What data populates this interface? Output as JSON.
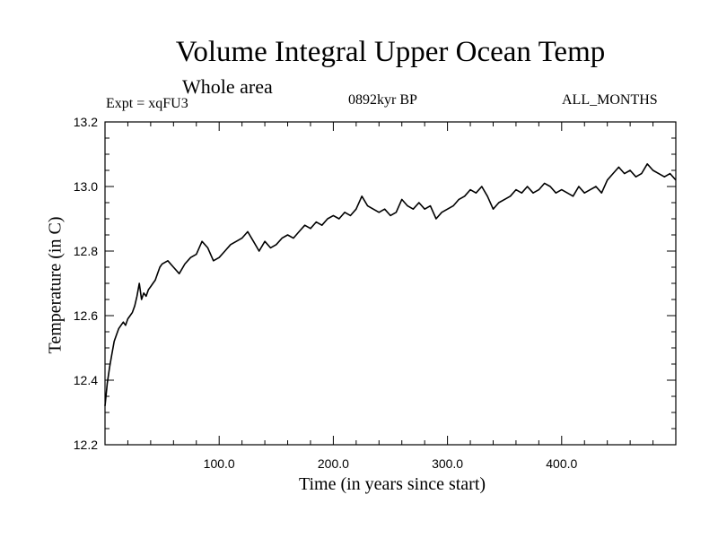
{
  "chart_data": {
    "type": "line",
    "title": "Volume Integral Upper Ocean Temp",
    "subtitle": "Whole area",
    "experiment_label": "Expt = xqFU3",
    "period_label": "0892kyr BP",
    "months_label": "ALL_MONTHS",
    "xlabel": "Time (in years since start)",
    "ylabel": "Temperature (in C)",
    "xlim": [
      0,
      500
    ],
    "ylim": [
      12.2,
      13.2
    ],
    "x_ticks": [
      100,
      200,
      300,
      400
    ],
    "x_tick_labels": [
      "100.0",
      "200.0",
      "300.0",
      "400.0"
    ],
    "y_ticks": [
      12.2,
      12.4,
      12.6,
      12.8,
      13.0,
      13.2
    ],
    "y_tick_labels": [
      "12.2",
      "12.4",
      "12.6",
      "12.8",
      "13.0",
      "13.2"
    ],
    "line_color": "#000000",
    "series": [
      {
        "name": "Volume integral upper ocean temperature",
        "x": [
          0,
          2,
          4,
          6,
          8,
          10,
          12,
          14,
          16,
          18,
          20,
          22,
          24,
          26,
          28,
          30,
          32,
          34,
          36,
          38,
          40,
          42,
          44,
          46,
          48,
          50,
          55,
          60,
          65,
          70,
          75,
          80,
          85,
          90,
          95,
          100,
          105,
          110,
          115,
          120,
          125,
          130,
          135,
          140,
          145,
          150,
          155,
          160,
          165,
          170,
          175,
          180,
          185,
          190,
          195,
          200,
          205,
          210,
          215,
          220,
          225,
          230,
          235,
          240,
          245,
          250,
          255,
          260,
          265,
          270,
          275,
          280,
          285,
          290,
          295,
          300,
          305,
          310,
          315,
          320,
          325,
          330,
          335,
          340,
          345,
          350,
          355,
          360,
          365,
          370,
          375,
          380,
          385,
          390,
          395,
          400,
          405,
          410,
          415,
          420,
          425,
          430,
          435,
          440,
          445,
          450,
          455,
          460,
          465,
          470,
          475,
          480,
          485,
          490,
          495,
          500
        ],
        "values": [
          12.32,
          12.39,
          12.44,
          12.48,
          12.52,
          12.54,
          12.56,
          12.57,
          12.58,
          12.57,
          12.59,
          12.6,
          12.61,
          12.63,
          12.66,
          12.7,
          12.65,
          12.67,
          12.66,
          12.68,
          12.69,
          12.7,
          12.71,
          12.73,
          12.75,
          12.76,
          12.77,
          12.75,
          12.73,
          12.76,
          12.78,
          12.79,
          12.83,
          12.81,
          12.77,
          12.78,
          12.8,
          12.82,
          12.83,
          12.84,
          12.86,
          12.83,
          12.8,
          12.83,
          12.81,
          12.82,
          12.84,
          12.85,
          12.84,
          12.86,
          12.88,
          12.87,
          12.89,
          12.88,
          12.9,
          12.91,
          12.9,
          12.92,
          12.91,
          12.93,
          12.97,
          12.94,
          12.93,
          12.92,
          12.93,
          12.91,
          12.92,
          12.96,
          12.94,
          12.93,
          12.95,
          12.93,
          12.94,
          12.9,
          12.92,
          12.93,
          12.94,
          12.96,
          12.97,
          12.99,
          12.98,
          13.0,
          12.97,
          12.93,
          12.95,
          12.96,
          12.97,
          12.99,
          12.98,
          13.0,
          12.98,
          12.99,
          13.01,
          13.0,
          12.98,
          12.99,
          12.98,
          12.97,
          13.0,
          12.98,
          12.99,
          13.0,
          12.98,
          13.02,
          13.04,
          13.06,
          13.04,
          13.05,
          13.03,
          13.04,
          13.07,
          13.05,
          13.04,
          13.03,
          13.04,
          13.02
        ]
      }
    ]
  }
}
